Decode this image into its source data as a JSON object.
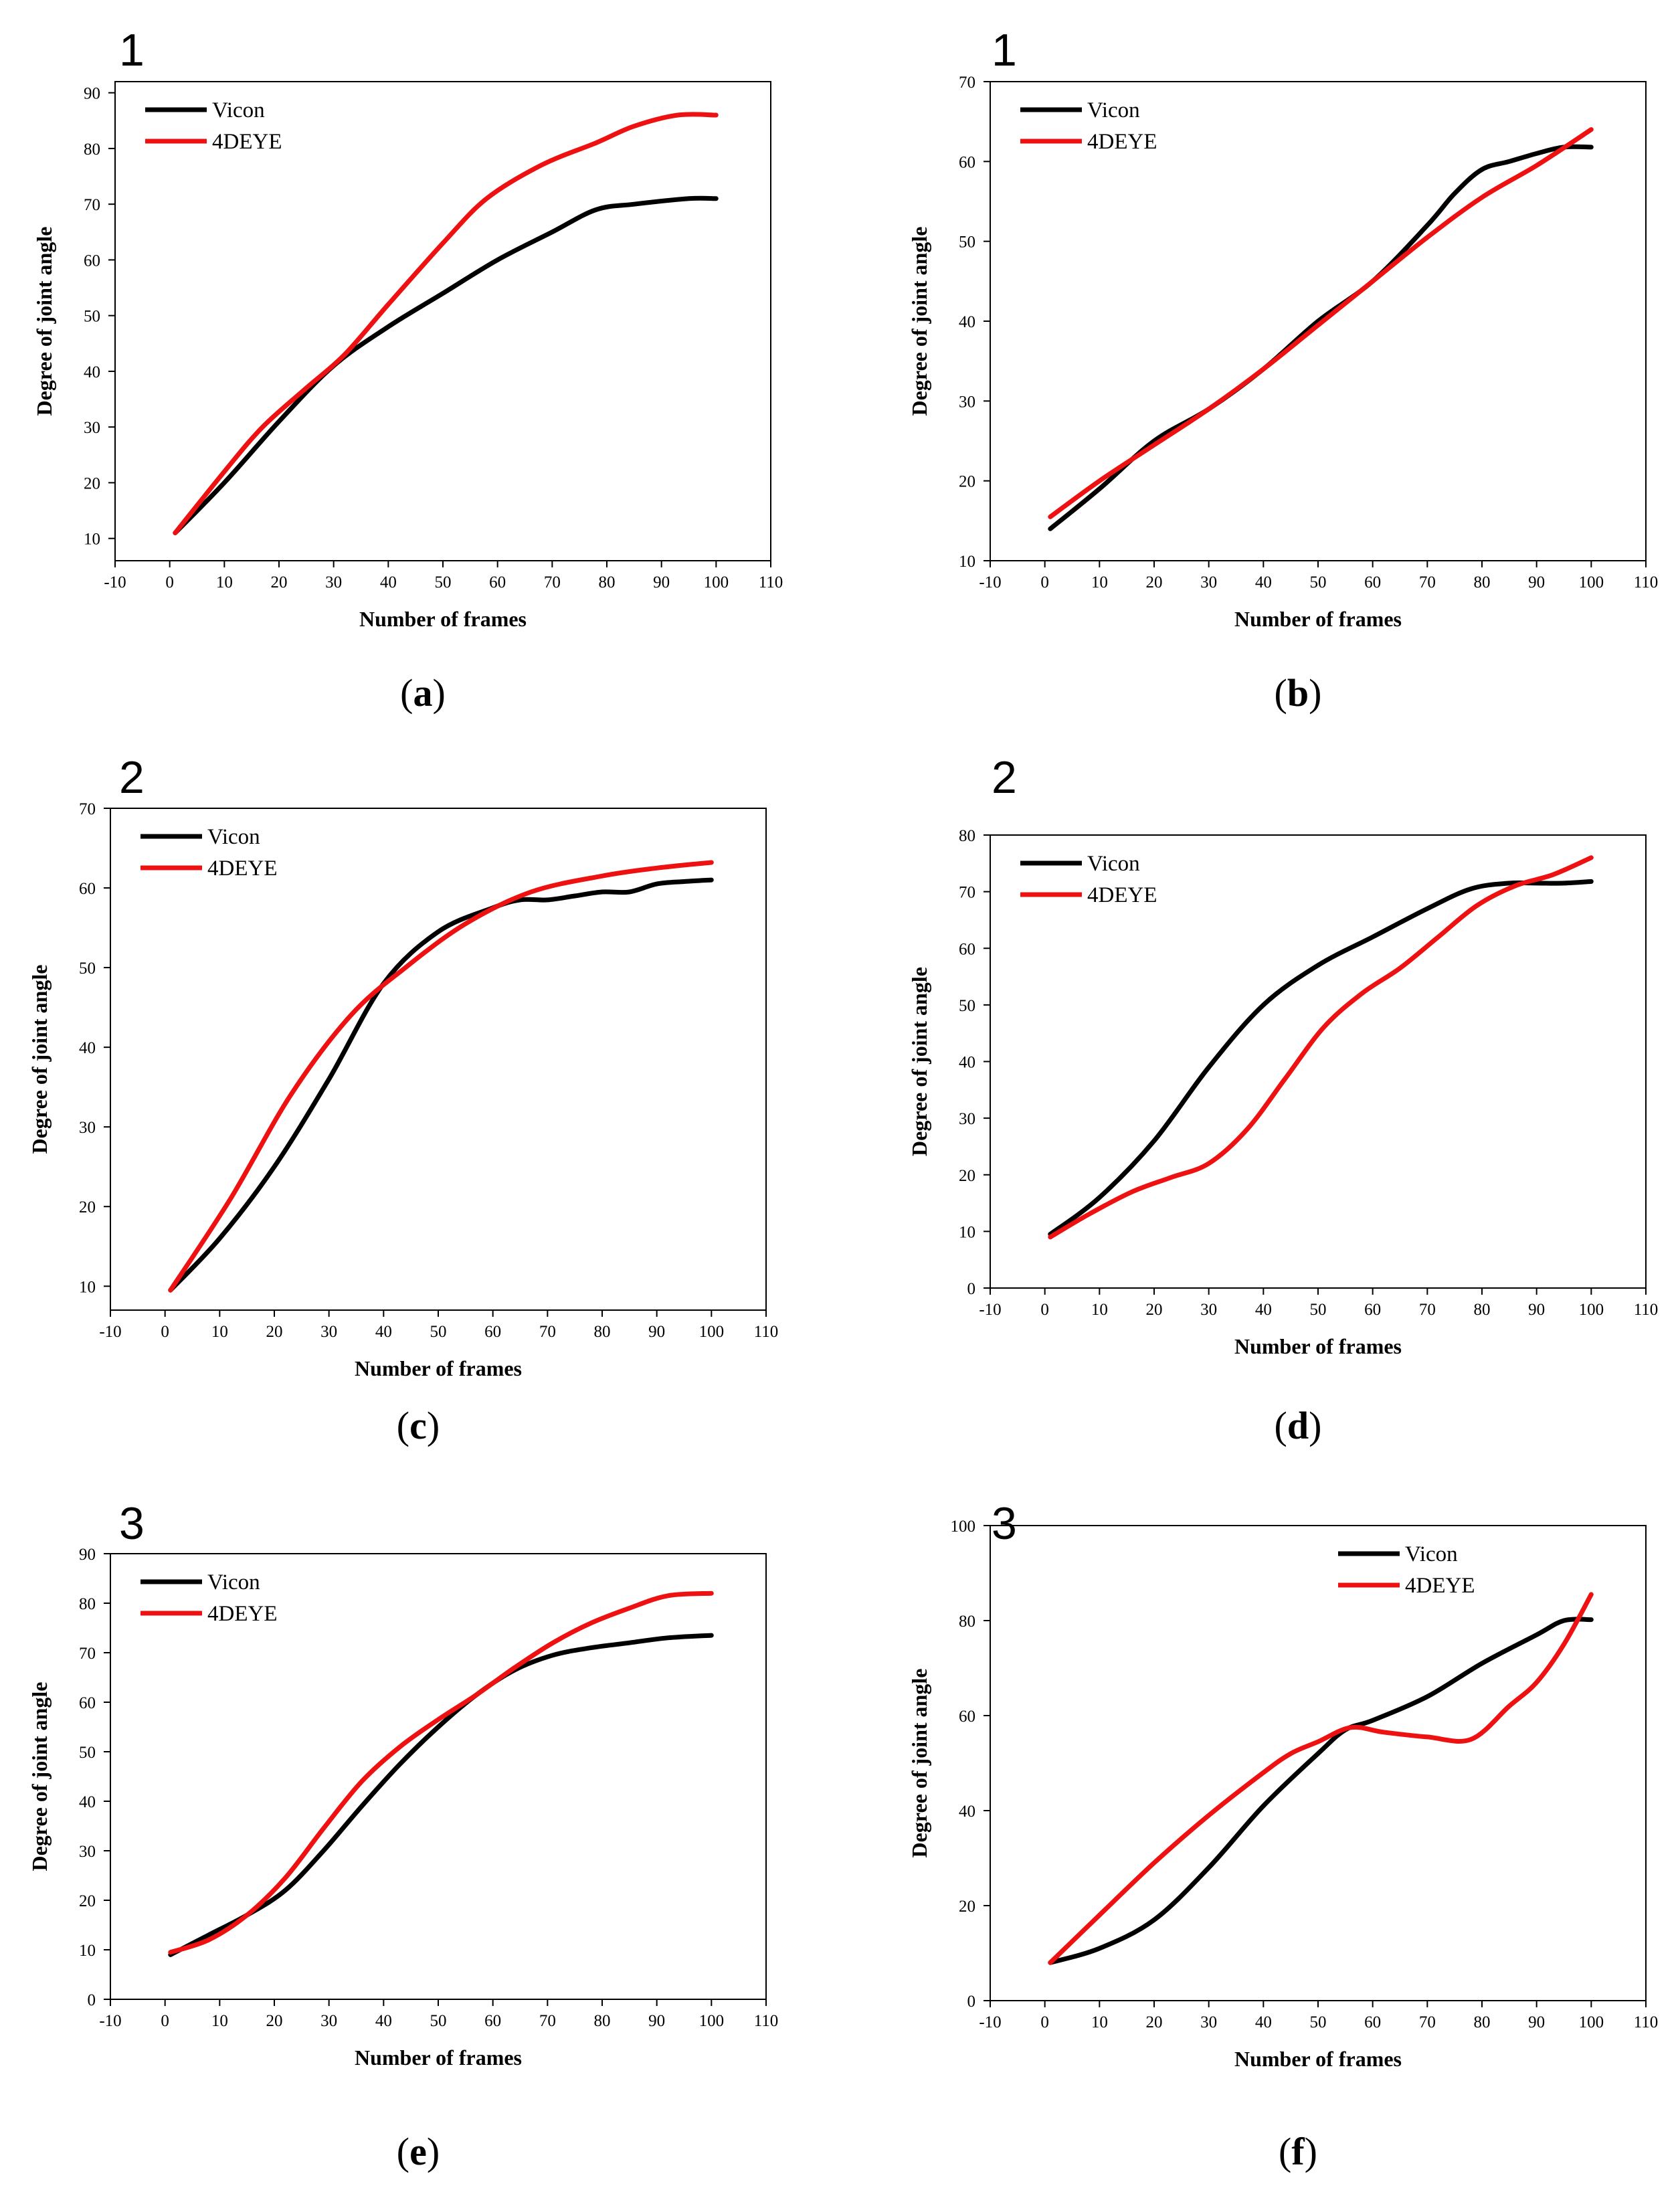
{
  "chart_data": [
    {
      "type": "line",
      "number": "1",
      "caption_label": "a",
      "xlabel": "Number of frames",
      "ylabel": "Degree of joint angle",
      "xlim": [
        -10,
        110
      ],
      "ylim": [
        6,
        92
      ],
      "xticks": [
        "-10",
        "0",
        "10",
        "20",
        "30",
        "40",
        "50",
        "60",
        "70",
        "80",
        "90",
        "100",
        "110"
      ],
      "yticks": [
        "10",
        "20",
        "30",
        "40",
        "50",
        "60",
        "70",
        "80",
        "90"
      ],
      "legend_position": "top-left",
      "series": [
        {
          "name": "Vicon",
          "color": "#000000",
          "x": [
            1,
            10,
            20,
            30,
            40,
            50,
            60,
            70,
            78,
            85,
            95,
            100
          ],
          "y": [
            11,
            20,
            31,
            41,
            48,
            54,
            60,
            65,
            69,
            70,
            71,
            71
          ]
        },
        {
          "name": "4DEYE",
          "color": "#ee1111",
          "x": [
            1,
            10,
            17,
            25,
            32,
            40,
            50,
            58,
            68,
            78,
            85,
            93,
            100
          ],
          "y": [
            11,
            22,
            30,
            37,
            43,
            52,
            63,
            71,
            77,
            81,
            84,
            86,
            86
          ]
        }
      ]
    },
    {
      "type": "line",
      "number": "1",
      "caption_label": "b",
      "xlabel": "Number of frames",
      "ylabel": "Degree of joint angle",
      "xlim": [
        -10,
        110
      ],
      "ylim": [
        10,
        70
      ],
      "xticks": [
        "-10",
        "0",
        "10",
        "20",
        "30",
        "40",
        "50",
        "60",
        "70",
        "80",
        "90",
        "100",
        "110"
      ],
      "yticks": [
        "10",
        "20",
        "30",
        "40",
        "50",
        "60",
        "70"
      ],
      "legend_position": "top-left",
      "series": [
        {
          "name": "Vicon",
          "color": "#000000",
          "x": [
            1,
            10,
            20,
            30,
            40,
            50,
            60,
            70,
            75,
            80,
            85,
            90,
            95,
            100
          ],
          "y": [
            14,
            19,
            25,
            29,
            34,
            40,
            45,
            52,
            56,
            59,
            60,
            61,
            61.8,
            61.8
          ]
        },
        {
          "name": "4DEYE",
          "color": "#ee1111",
          "x": [
            1,
            10,
            20,
            30,
            40,
            50,
            60,
            70,
            80,
            90,
            100
          ],
          "y": [
            15.5,
            20,
            24.5,
            29,
            34,
            39.5,
            45,
            50.5,
            55.5,
            59.5,
            64
          ]
        }
      ]
    },
    {
      "type": "line",
      "number": "2",
      "caption_label": "c",
      "xlabel": "Number of frames",
      "ylabel": "Degree of joint angle",
      "xlim": [
        -10,
        110
      ],
      "ylim": [
        7,
        70
      ],
      "xticks": [
        "-10",
        "0",
        "10",
        "20",
        "30",
        "40",
        "50",
        "60",
        "70",
        "80",
        "90",
        "100",
        "110"
      ],
      "yticks": [
        "10",
        "20",
        "30",
        "40",
        "50",
        "60",
        "70"
      ],
      "legend_position": "top-left",
      "series": [
        {
          "name": "Vicon",
          "color": "#000000",
          "x": [
            1,
            10,
            20,
            30,
            40,
            50,
            60,
            65,
            70,
            75,
            80,
            85,
            90,
            95,
            100
          ],
          "y": [
            9.5,
            16,
            25,
            36,
            48,
            54.5,
            57.5,
            58.5,
            58.5,
            59,
            59.5,
            59.5,
            60.5,
            60.8,
            61
          ]
        },
        {
          "name": "4DEYE",
          "color": "#ee1111",
          "x": [
            1,
            12,
            23,
            34,
            44,
            55,
            67,
            80,
            90,
            100
          ],
          "y": [
            9.5,
            21,
            34,
            44,
            50,
            55.5,
            59.5,
            61.5,
            62.5,
            63.2
          ]
        }
      ]
    },
    {
      "type": "line",
      "number": "2",
      "caption_label": "d",
      "xlabel": "Number of frames",
      "ylabel": "Degree of joint angle",
      "xlim": [
        -10,
        110
      ],
      "ylim": [
        0,
        80
      ],
      "xticks": [
        "-10",
        "0",
        "10",
        "20",
        "30",
        "40",
        "50",
        "60",
        "70",
        "80",
        "90",
        "100",
        "110"
      ],
      "yticks": [
        "0",
        "10",
        "20",
        "30",
        "40",
        "50",
        "60",
        "70",
        "80"
      ],
      "legend_position": "top-left",
      "series": [
        {
          "name": "Vicon",
          "color": "#000000",
          "x": [
            1,
            10,
            20,
            30,
            40,
            50,
            60,
            70,
            78,
            85,
            90,
            95,
            100
          ],
          "y": [
            9.5,
            16,
            26,
            39,
            50,
            57,
            62,
            67,
            70.5,
            71.5,
            71.5,
            71.5,
            71.8
          ]
        },
        {
          "name": "4DEYE",
          "color": "#ee1111",
          "x": [
            1,
            8,
            16,
            23,
            30,
            37,
            44,
            51,
            58,
            65,
            72,
            79,
            86,
            93,
            100
          ],
          "y": [
            9,
            13,
            17,
            19.5,
            22,
            28,
            37,
            46,
            52,
            56.5,
            62,
            67.5,
            71,
            73,
            76
          ]
        }
      ]
    },
    {
      "type": "line",
      "number": "3",
      "caption_label": "e",
      "xlabel": "Number of frames",
      "ylabel": "Degree of joint angle",
      "xlim": [
        -10,
        110
      ],
      "ylim": [
        0,
        90
      ],
      "xticks": [
        "-10",
        "0",
        "10",
        "20",
        "30",
        "40",
        "50",
        "60",
        "70",
        "80",
        "90",
        "100",
        "110"
      ],
      "yticks": [
        "0",
        "10",
        "20",
        "30",
        "40",
        "50",
        "60",
        "70",
        "80",
        "90"
      ],
      "legend_position": "top-left",
      "series": [
        {
          "name": "Vicon",
          "color": "#000000",
          "x": [
            1,
            8,
            15,
            22,
            29,
            36,
            43,
            50,
            57,
            64,
            71,
            78,
            85,
            92,
            100
          ],
          "y": [
            9,
            13,
            17,
            22,
            30,
            39,
            47.5,
            55,
            61.5,
            66.5,
            69.5,
            71,
            72,
            73,
            73.5
          ]
        },
        {
          "name": "4DEYE",
          "color": "#ee1111",
          "x": [
            1,
            8,
            15,
            22,
            29,
            36,
            43,
            50,
            57,
            64,
            71,
            78,
            85,
            92,
            100
          ],
          "y": [
            9.5,
            12,
            17,
            24.5,
            34.5,
            44,
            51,
            56.5,
            61.5,
            67,
            72,
            76,
            79,
            81.5,
            82
          ]
        }
      ]
    },
    {
      "type": "line",
      "number": "3",
      "caption_label": "f",
      "xlabel": "Number of frames",
      "ylabel": "Degree of joint angle",
      "xlim": [
        -10,
        110
      ],
      "ylim": [
        0,
        100
      ],
      "xticks": [
        "-10",
        "0",
        "10",
        "20",
        "30",
        "40",
        "50",
        "60",
        "70",
        "80",
        "90",
        "100",
        "110"
      ],
      "yticks": [
        "0",
        "20",
        "40",
        "60",
        "80",
        "100"
      ],
      "legend_position": "top-right",
      "series": [
        {
          "name": "Vicon",
          "color": "#000000",
          "x": [
            1,
            10,
            20,
            30,
            40,
            50,
            55,
            60,
            70,
            80,
            90,
            95,
            100
          ],
          "y": [
            8,
            11,
            17,
            28,
            41,
            52,
            57,
            59,
            64,
            71,
            77,
            80,
            80.2
          ]
        },
        {
          "name": "4DEYE",
          "color": "#ee1111",
          "x": [
            1,
            10,
            20,
            30,
            40,
            45,
            50,
            56,
            62,
            70,
            78,
            85,
            90,
            95,
            100
          ],
          "y": [
            8,
            18,
            29,
            39,
            48,
            52,
            54.5,
            57.5,
            56.5,
            55.5,
            55,
            62,
            67,
            75,
            85.5
          ]
        }
      ]
    }
  ]
}
